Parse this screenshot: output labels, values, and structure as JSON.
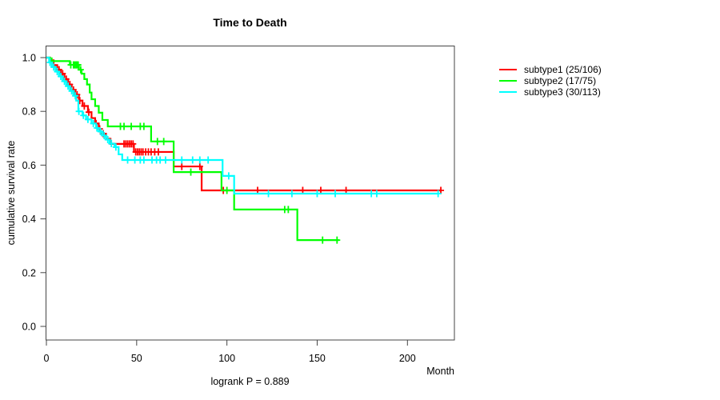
{
  "chart_data": {
    "type": "line",
    "subtype": "kaplan-meier-step-curves",
    "title": "Time to Death",
    "xlabel": "Month",
    "ylabel": "cumulative survival rate",
    "annotation": "logrank P = 0.889",
    "xlim": [
      0,
      226
    ],
    "ylim": [
      0,
      1.0
    ],
    "x_ticks": [
      0,
      50,
      100,
      150,
      200
    ],
    "y_ticks": [
      0.0,
      0.2,
      0.4,
      0.6,
      0.8,
      1.0
    ],
    "grid": false,
    "legend_position": "right-outside",
    "series": [
      {
        "name": "subtype1 (25/106)",
        "label": "subtype1",
        "events": "25/106",
        "color": "#ff0000",
        "steps": [
          [
            0,
            1.0
          ],
          [
            2,
            0.99
          ],
          [
            4,
            0.972
          ],
          [
            6,
            0.955
          ],
          [
            8,
            0.94
          ],
          [
            10,
            0.92
          ],
          [
            12,
            0.9
          ],
          [
            14,
            0.88
          ],
          [
            16,
            0.862
          ],
          [
            18,
            0.84
          ],
          [
            20,
            0.82
          ],
          [
            23,
            0.797
          ],
          [
            25,
            0.775
          ],
          [
            27,
            0.755
          ],
          [
            29,
            0.735
          ],
          [
            30,
            0.717
          ],
          [
            33,
            0.698
          ],
          [
            35.5,
            0.679
          ],
          [
            48.5,
            0.649
          ],
          [
            70.5,
            0.595
          ],
          [
            86,
            0.506
          ]
        ],
        "censor_months": [
          7,
          9,
          11,
          13,
          15,
          17,
          18.5,
          21,
          23.5,
          27.5,
          29.5,
          31.5,
          43,
          44,
          45,
          46,
          47,
          48,
          49.5,
          50.5,
          51.5,
          52.5,
          53.5,
          55,
          56.5,
          58,
          60,
          62,
          75,
          85,
          98,
          117,
          142,
          152,
          166,
          218.5
        ],
        "end_month": 218.5,
        "final_survival": 0.506
      },
      {
        "name": "subtype2 (17/75)",
        "label": "subtype2",
        "events": "17/75",
        "color": "#00ff00",
        "steps": [
          [
            0,
            1.0
          ],
          [
            2,
            0.987
          ],
          [
            13,
            0.973
          ],
          [
            18,
            0.955
          ],
          [
            19.5,
            0.94
          ],
          [
            21,
            0.92
          ],
          [
            22.5,
            0.9
          ],
          [
            24,
            0.87
          ],
          [
            25,
            0.845
          ],
          [
            27,
            0.82
          ],
          [
            29,
            0.795
          ],
          [
            31,
            0.768
          ],
          [
            34,
            0.744
          ],
          [
            58,
            0.688
          ],
          [
            70.5,
            0.574
          ],
          [
            97,
            0.506
          ],
          [
            104,
            0.435
          ],
          [
            139,
            0.321
          ]
        ],
        "censor_months": [
          3,
          13.5,
          15,
          15.7,
          16.4,
          17,
          17.6,
          19,
          41,
          43,
          47,
          52,
          54,
          61.5,
          65,
          80,
          100,
          132,
          134,
          153,
          161
        ],
        "end_month": 162,
        "final_survival": 0.321
      },
      {
        "name": "subtype3 (30/113)",
        "label": "subtype3",
        "events": "30/113",
        "color": "#00ffff",
        "steps": [
          [
            0,
            1.0
          ],
          [
            1.5,
            0.982
          ],
          [
            3,
            0.965
          ],
          [
            5,
            0.948
          ],
          [
            7,
            0.93
          ],
          [
            9,
            0.912
          ],
          [
            11,
            0.894
          ],
          [
            13,
            0.876
          ],
          [
            15,
            0.858
          ],
          [
            16.5,
            0.84
          ],
          [
            17.7,
            0.8
          ],
          [
            20,
            0.785
          ],
          [
            22,
            0.77
          ],
          [
            25,
            0.755
          ],
          [
            27.5,
            0.738
          ],
          [
            29,
            0.725
          ],
          [
            31,
            0.71
          ],
          [
            33,
            0.695
          ],
          [
            35,
            0.68
          ],
          [
            37.7,
            0.667
          ],
          [
            40,
            0.64
          ],
          [
            42,
            0.619
          ],
          [
            97.6,
            0.56
          ],
          [
            104,
            0.494
          ]
        ],
        "censor_months": [
          2,
          4,
          6,
          8,
          10,
          12,
          14,
          16,
          18,
          20.5,
          23,
          26,
          28,
          30,
          32,
          34,
          36,
          38.5,
          45,
          49,
          52,
          54,
          58.5,
          61,
          63,
          66,
          75,
          81,
          85,
          89.6,
          101,
          123,
          136,
          150,
          160,
          180,
          183,
          217
        ],
        "end_month": 217,
        "final_survival": 0.494
      }
    ]
  },
  "style": {
    "axis_color": "#454545",
    "text_color": "#000000",
    "background": "#ffffff"
  }
}
